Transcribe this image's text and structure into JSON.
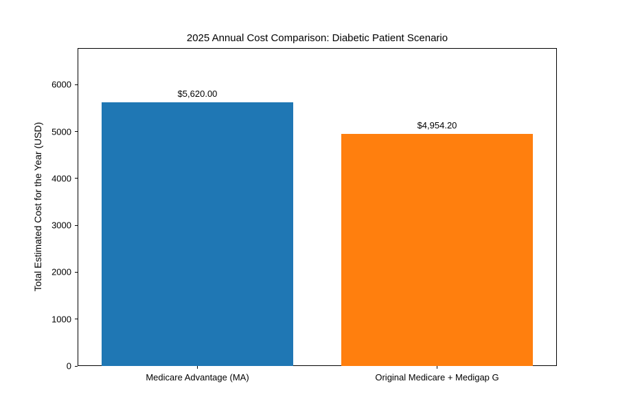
{
  "chart_data": {
    "type": "bar",
    "title": "2025 Annual Cost Comparison: Diabetic Patient Scenario",
    "categories": [
      "Medicare Advantage (MA)",
      "Original Medicare + Medigap G"
    ],
    "values": [
      5620.0,
      4954.2
    ],
    "value_labels": [
      "$5,620.00",
      "$4,954.20"
    ],
    "bar_colors": [
      "#1f77b4",
      "#ff7f0e"
    ],
    "xlabel": "",
    "ylabel": "Total Estimated Cost for the Year (USD)",
    "ylim": [
      0,
      6780
    ],
    "yticks": [
      0,
      1000,
      2000,
      3000,
      4000,
      5000,
      6000
    ],
    "ytick_labels": [
      "0",
      "1000",
      "2000",
      "3000",
      "4000",
      "5000",
      "6000"
    ],
    "grid": false,
    "legend_position": "none",
    "background_color": "#ffffff",
    "spine_color": "#000000",
    "text_color": "#000000",
    "bar_width_fraction": 0.8
  }
}
